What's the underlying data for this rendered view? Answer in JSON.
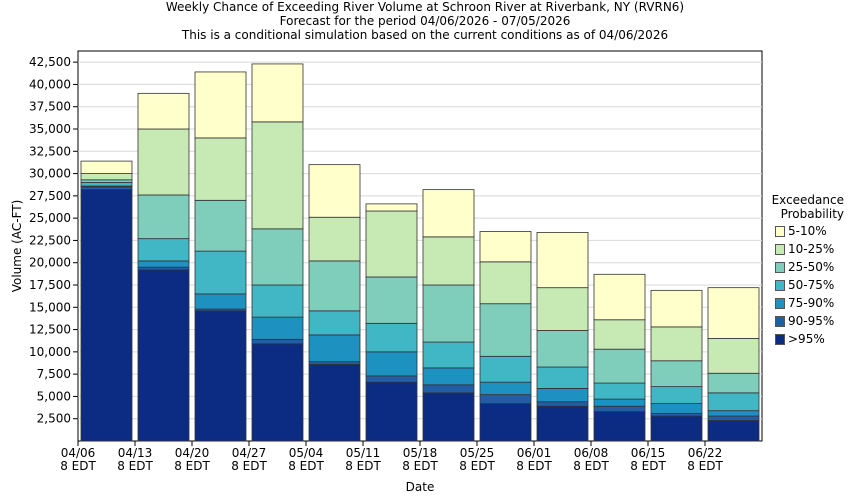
{
  "chart_data": {
    "type": "bar",
    "stacked": true,
    "title_lines": [
      "Weekly Chance of Exceeding River Volume at Schroon River at Riverbank, NY (RVRN6)",
      "Forecast for the period 04/06/2026 - 07/05/2026",
      "This is a conditional simulation based on the current conditions as of 04/06/2026"
    ],
    "xlabel": "Date",
    "ylabel": "Volume (AC-FT)",
    "ylim": [
      0,
      43750
    ],
    "yticks": [
      2500,
      5000,
      7500,
      10000,
      12500,
      15000,
      17500,
      20000,
      22500,
      25000,
      27500,
      30000,
      32500,
      35000,
      37500,
      40000,
      42500
    ],
    "ytick_labels": [
      "2,500",
      "5,000",
      "7,500",
      "10,000",
      "12,500",
      "15,000",
      "17,500",
      "20,000",
      "22,500",
      "25,000",
      "27,500",
      "30,000",
      "32,500",
      "35,000",
      "37,500",
      "40,000",
      "42,500"
    ],
    "x_tick_labels": [
      {
        "date": "04/06",
        "time": "8 EDT"
      },
      {
        "date": "04/13",
        "time": "8 EDT"
      },
      {
        "date": "04/20",
        "time": "8 EDT"
      },
      {
        "date": "04/27",
        "time": "8 EDT"
      },
      {
        "date": "05/04",
        "time": "8 EDT"
      },
      {
        "date": "05/11",
        "time": "8 EDT"
      },
      {
        "date": "05/18",
        "time": "8 EDT"
      },
      {
        "date": "05/25",
        "time": "8 EDT"
      },
      {
        "date": "06/01",
        "time": "8 EDT"
      },
      {
        "date": "06/08",
        "time": "8 EDT"
      },
      {
        "date": "06/15",
        "time": "8 EDT"
      },
      {
        "date": "06/22",
        "time": "8 EDT"
      }
    ],
    "legend_title": [
      "Exceedance",
      "Probability"
    ],
    "legend_position": "right",
    "series": [
      {
        "name": "5-10%",
        "color": "#ffffcc"
      },
      {
        "name": "10-25%",
        "color": "#c7e9b4"
      },
      {
        "name": "25-50%",
        "color": "#7fcdbb"
      },
      {
        "name": "50-75%",
        "color": "#41b6c4"
      },
      {
        "name": "75-90%",
        "color": "#1d91c0"
      },
      {
        "name": "90-95%",
        "color": "#225ea8"
      },
      {
        "name": ">95%",
        "color": "#0c2c84"
      }
    ],
    "bars": [
      [
        28200,
        28500,
        28600,
        29000,
        29300,
        30000,
        31400
      ],
      [
        19200,
        19500,
        20200,
        22700,
        27600,
        35000,
        39000
      ],
      [
        14600,
        14800,
        16500,
        21300,
        27000,
        34000,
        41400
      ],
      [
        10900,
        11400,
        13900,
        17500,
        23800,
        35800,
        42300
      ],
      [
        8600,
        8900,
        11900,
        14600,
        20200,
        25100,
        31000
      ],
      [
        6600,
        7300,
        10000,
        13200,
        18400,
        25800,
        26600
      ],
      [
        5400,
        6300,
        8200,
        11100,
        17500,
        22900,
        28200
      ],
      [
        4200,
        5200,
        6600,
        9500,
        15400,
        20100,
        23500
      ],
      [
        3900,
        4400,
        5900,
        8300,
        12400,
        17200,
        23400
      ],
      [
        3300,
        3900,
        4700,
        6500,
        10300,
        13600,
        18700
      ],
      [
        2800,
        3100,
        4200,
        6100,
        9000,
        12800,
        16900
      ],
      [
        2300,
        2800,
        3400,
        5400,
        7600,
        11500,
        17200
      ]
    ]
  }
}
